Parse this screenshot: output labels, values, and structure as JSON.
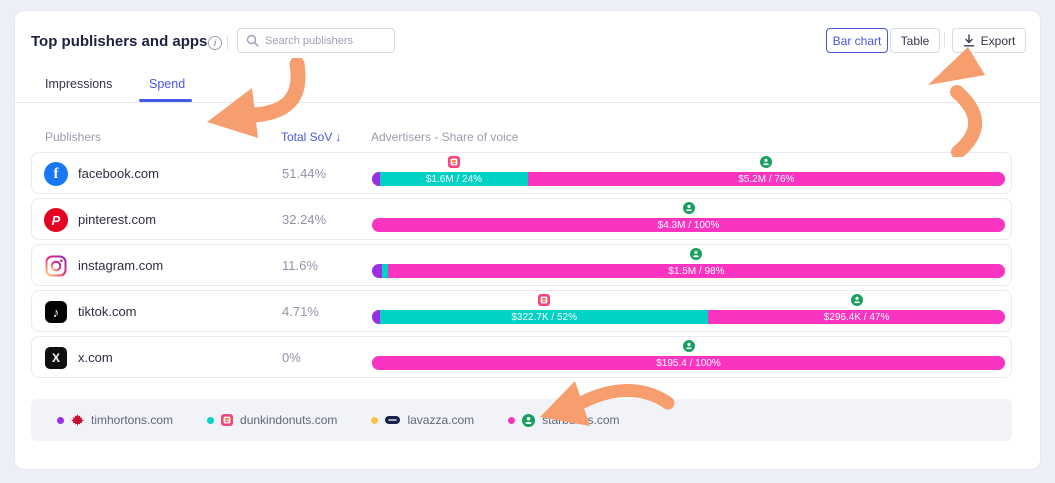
{
  "header": {
    "title": "Top publishers and apps",
    "search_placeholder": "Search publishers",
    "view_toggle": {
      "bar_chart": "Bar chart",
      "table": "Table"
    },
    "export": "Export"
  },
  "tabs": {
    "impressions": "Impressions",
    "spend": "Spend"
  },
  "columns": {
    "publishers": "Publishers",
    "total_sov": "Total SoV",
    "advertisers": "Advertisers - Share of voice"
  },
  "icons": {
    "facebook": "f",
    "pinterest": "P",
    "tiktok": "♪",
    "x": "X",
    "info": "i",
    "sort_desc": "↓"
  },
  "colors": {
    "timhortons": "#9B2FE3",
    "dunkindonuts": "#00D2C4",
    "lavazza": "#FFC445",
    "starbucks": "#FA34C0",
    "accent": "#4757E6",
    "arrow": "#F79E6E"
  },
  "rows": [
    {
      "publisher": "facebook.com",
      "total_sov": "51.44%",
      "segments": [
        {
          "brand": "timhortons",
          "width_pct": 1.3,
          "label": ""
        },
        {
          "brand": "dunkindonuts",
          "width_pct": 23.3,
          "label": "$1.6M / 24%"
        },
        {
          "brand": "starbucks",
          "width_pct": 75.4,
          "label": "$5.2M / 76%"
        }
      ]
    },
    {
      "publisher": "pinterest.com",
      "total_sov": "32.24%",
      "segments": [
        {
          "brand": "starbucks",
          "width_pct": 100,
          "label": "$4.3M / 100%"
        }
      ]
    },
    {
      "publisher": "instagram.com",
      "total_sov": "11.6%",
      "segments": [
        {
          "brand": "timhortons",
          "width_pct": 1.6,
          "label": ""
        },
        {
          "brand": "dunkindonuts",
          "width_pct": 0.9,
          "label": ""
        },
        {
          "brand": "starbucks",
          "width_pct": 97.5,
          "label": "$1.5M / 98%"
        }
      ]
    },
    {
      "publisher": "tiktok.com",
      "total_sov": "4.71%",
      "segments": [
        {
          "brand": "timhortons",
          "width_pct": 1.3,
          "label": ""
        },
        {
          "brand": "dunkindonuts",
          "width_pct": 51.8,
          "label": "$322.7K / 52%"
        },
        {
          "brand": "starbucks",
          "width_pct": 46.9,
          "label": "$296.4K / 47%"
        }
      ]
    },
    {
      "publisher": "x.com",
      "total_sov": "0%",
      "segments": [
        {
          "brand": "starbucks",
          "width_pct": 100,
          "label": "$195.4 / 100%"
        }
      ]
    }
  ],
  "legend": {
    "items": [
      {
        "brand": "timhortons",
        "label": "timhortons.com"
      },
      {
        "brand": "dunkindonuts",
        "label": "dunkindonuts.com"
      },
      {
        "brand": "lavazza",
        "label": "lavazza.com"
      },
      {
        "brand": "starbucks",
        "label": "starbucks.com"
      }
    ]
  }
}
